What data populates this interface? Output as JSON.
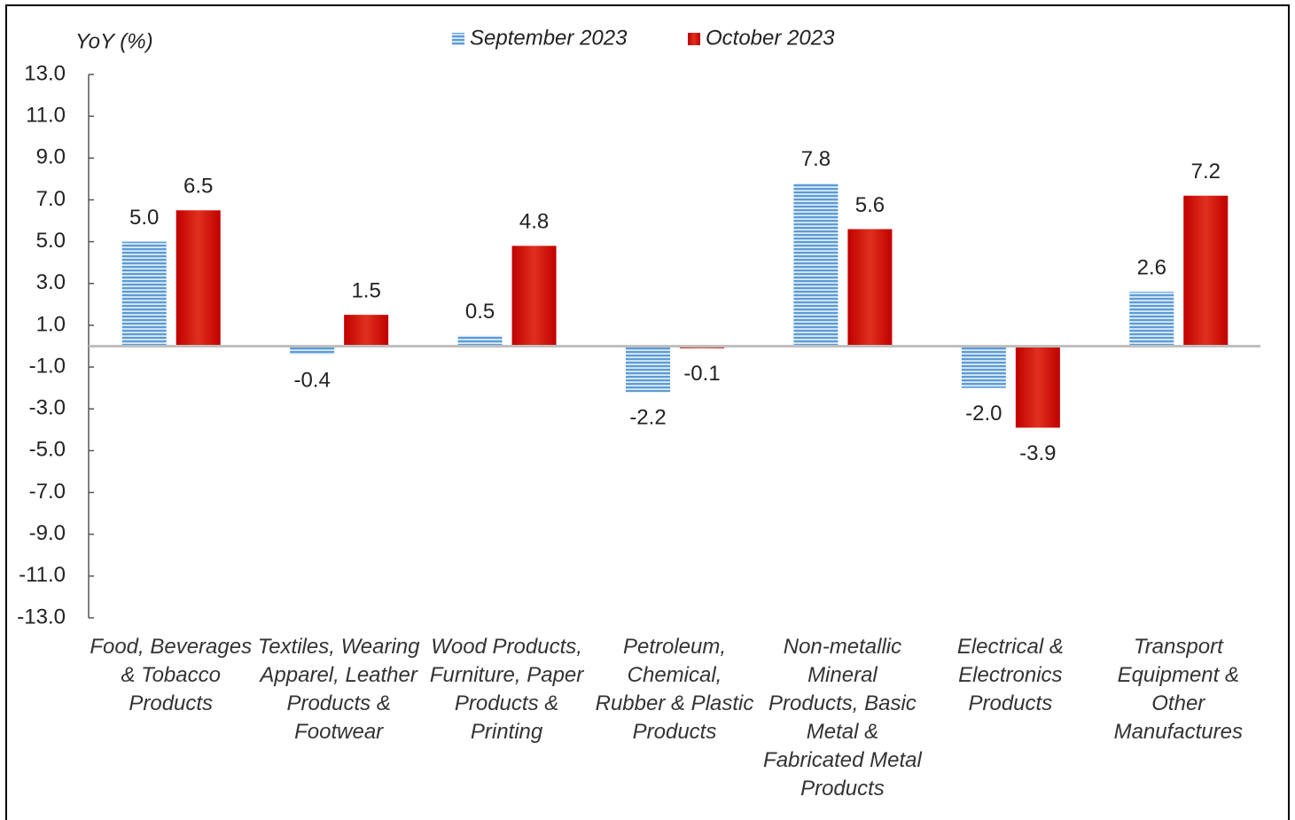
{
  "chart_data": {
    "type": "bar",
    "y_label": "YoY (%)",
    "categories": [
      "Food, Beverages & Tobacco Products",
      "Textiles, Wearing Apparel, Leather Products & Footwear",
      "Wood Products, Furniture, Paper Products & Printing",
      "Petroleum, Chemical, Rubber & Plastic Products",
      "Non-metallic Mineral Products, Basic Metal & Fabricated Metal Products",
      "Electrical & Electronics Products",
      "Transport Equipment & Other Manufactures"
    ],
    "series": [
      {
        "name": "September 2023",
        "color": "#5b9bd5",
        "values": [
          5.0,
          -0.4,
          0.5,
          -2.2,
          7.8,
          -2.0,
          2.6
        ],
        "value_labels": [
          "5.0",
          "-0.4",
          "0.5",
          "-2.2",
          "7.8",
          "-2.0",
          "2.6"
        ]
      },
      {
        "name": "October 2023",
        "color": "#c00000",
        "values": [
          6.5,
          1.5,
          4.8,
          -0.1,
          5.6,
          -3.9,
          7.2
        ],
        "value_labels": [
          "6.5",
          "1.5",
          "4.8",
          "-0.1",
          "5.6",
          "-3.9",
          "7.2"
        ]
      }
    ],
    "ylim": [
      -13,
      13
    ],
    "yticks": [
      {
        "value": 13,
        "label": "13.0"
      },
      {
        "value": 11,
        "label": "11.0"
      },
      {
        "value": 9,
        "label": "9.0"
      },
      {
        "value": 7,
        "label": "7.0"
      },
      {
        "value": 5,
        "label": "5.0"
      },
      {
        "value": 3,
        "label": "3.0"
      },
      {
        "value": 1,
        "label": "1.0"
      },
      {
        "value": -1,
        "label": "-1.0"
      },
      {
        "value": -3,
        "label": "-3.0"
      },
      {
        "value": -5,
        "label": "-5.0"
      },
      {
        "value": -7,
        "label": "-7.0"
      },
      {
        "value": -9,
        "label": "-9.0"
      },
      {
        "value": -11,
        "label": "-11.0"
      },
      {
        "value": -13,
        "label": "-13.0"
      }
    ],
    "legend": "top"
  }
}
